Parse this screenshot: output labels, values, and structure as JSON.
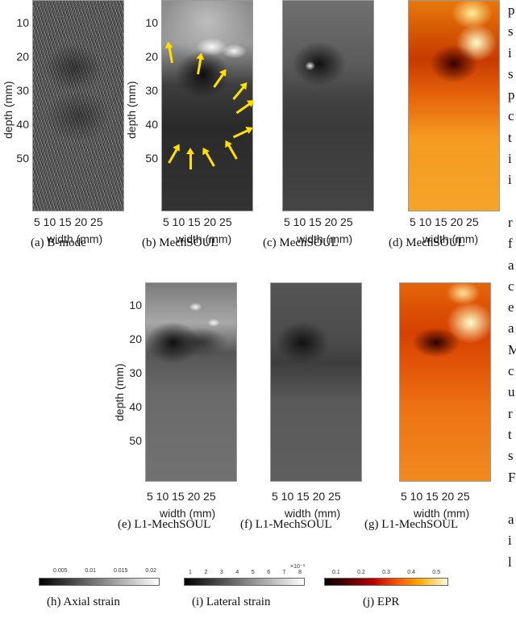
{
  "axes": {
    "ylabel": "depth (mm)",
    "xlabel": "width (mm)",
    "yticks": [
      "10",
      "20",
      "30",
      "40",
      "50"
    ],
    "xticks": "5 10 15 20 25"
  },
  "captions": {
    "a": "(a)  B-mode",
    "b": "(b)  MechSOUL",
    "c": "(c)  MechSOUL",
    "d": "(d)  MechSOUL",
    "e": "(e)  L1-MechSOUL",
    "f": "(f)  L1-MechSOUL",
    "g": "(g)  L1-MechSOUL",
    "h": "(h)  Axial strain",
    "i": "(i)  Lateral strain",
    "j": "(j)  EPR"
  },
  "colorbars": {
    "axial": {
      "ticks": [
        "0.005",
        "0.01",
        "0.015",
        "0.02"
      ]
    },
    "lateral": {
      "ticks": [
        "1",
        "2",
        "3",
        "4",
        "5",
        "6",
        "7",
        "8"
      ],
      "exponent": "×10⁻³"
    },
    "epr": {
      "ticks": [
        "0.1",
        "0.2",
        "0.3",
        "0.4",
        "0.5"
      ]
    }
  },
  "edge_text": [
    "p",
    "s",
    "i",
    "s",
    "p",
    "c",
    "t",
    "i",
    "i",
    "",
    "r",
    "f",
    "a",
    "c",
    "e",
    "a",
    "M",
    "c",
    "u",
    "r",
    "t",
    "s",
    "F",
    "",
    "a",
    "i",
    "l"
  ],
  "colors": {
    "arrow": "#ffe000"
  }
}
